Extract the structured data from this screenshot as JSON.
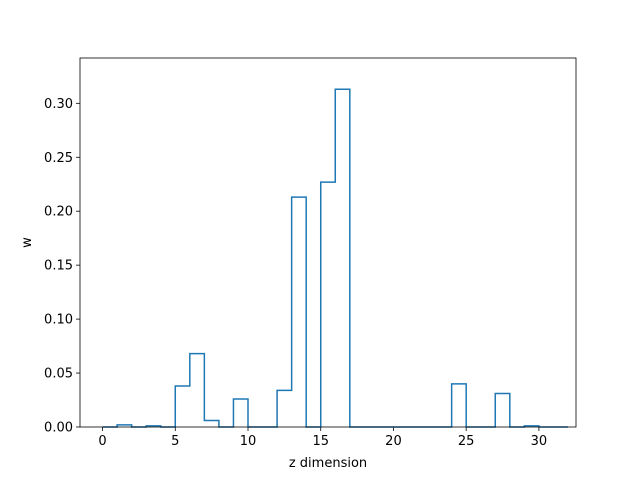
{
  "chart_data": {
    "type": "bar",
    "style": "step-histogram",
    "series_color": "#1f77b4",
    "xlabel": "z dimension",
    "ylabel": "w",
    "bin_edges": [
      0,
      1,
      2,
      3,
      4,
      5,
      6,
      7,
      8,
      9,
      10,
      11,
      12,
      13,
      14,
      15,
      16,
      17,
      18,
      19,
      20,
      21,
      22,
      23,
      24,
      25,
      26,
      27,
      28,
      29,
      30,
      31,
      32
    ],
    "values": [
      0.0,
      0.002,
      0.0,
      0.001,
      0.0,
      0.038,
      0.068,
      0.006,
      0.0,
      0.026,
      0.0,
      0.0,
      0.034,
      0.213,
      0.0,
      0.227,
      0.313,
      0.0,
      0.0,
      0.0,
      0.0,
      0.0,
      0.0,
      0.0,
      0.04,
      0.0,
      0.0,
      0.031,
      0.0,
      0.001,
      0.0,
      0.0
    ],
    "xlim": [
      -1.55,
      32.55
    ],
    "ylim": [
      0,
      0.342
    ],
    "xticks": [
      0,
      5,
      10,
      15,
      20,
      25,
      30
    ],
    "yticks": [
      0.0,
      0.05,
      0.1,
      0.15,
      0.2,
      0.25,
      0.3
    ],
    "xtick_labels": [
      "0",
      "5",
      "10",
      "15",
      "20",
      "25",
      "30"
    ],
    "ytick_labels": [
      "0.00",
      "0.05",
      "0.10",
      "0.15",
      "0.20",
      "0.25",
      "0.30"
    ]
  }
}
